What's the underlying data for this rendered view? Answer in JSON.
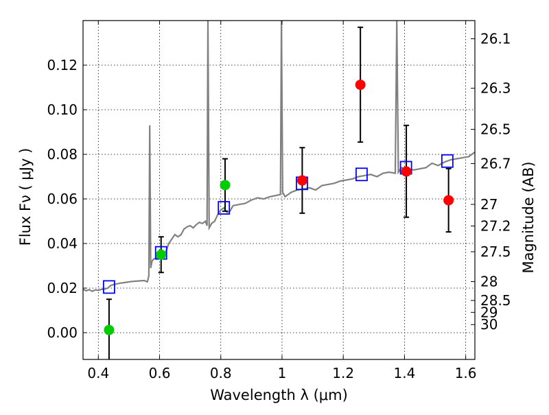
{
  "chart_data": {
    "type": "scatter",
    "xlabel": "Wavelength  λ (μm)",
    "ylabel": "Flux  Fν  ( μJy )",
    "ylabel_right": "Magnitude (AB)",
    "xlim": [
      0.35,
      1.63
    ],
    "ylim": [
      -0.012,
      0.14
    ],
    "grid": true,
    "xticks": [
      {
        "value": 0.4,
        "label": "0.4"
      },
      {
        "value": 0.6,
        "label": "0.6"
      },
      {
        "value": 0.8,
        "label": "0.8"
      },
      {
        "value": 1.0,
        "label": "1"
      },
      {
        "value": 1.2,
        "label": "1.2"
      },
      {
        "value": 1.4,
        "label": "1.4"
      },
      {
        "value": 1.6,
        "label": "1.6"
      }
    ],
    "yticks": [
      {
        "value": 0.0,
        "label": "0.00"
      },
      {
        "value": 0.02,
        "label": "0.02"
      },
      {
        "value": 0.04,
        "label": "0.04"
      },
      {
        "value": 0.06,
        "label": "0.06"
      },
      {
        "value": 0.08,
        "label": "0.08"
      },
      {
        "value": 0.1,
        "label": "0.10"
      },
      {
        "value": 0.12,
        "label": "0.12"
      }
    ],
    "right_ticks": [
      {
        "mag": 26.1,
        "label": "26.1"
      },
      {
        "mag": 26.3,
        "label": "26.3"
      },
      {
        "mag": 26.5,
        "label": "26.5"
      },
      {
        "mag": 26.7,
        "label": "26.7"
      },
      {
        "mag": 27.0,
        "label": "27"
      },
      {
        "mag": 27.2,
        "label": "27.2"
      },
      {
        "mag": 27.5,
        "label": "27.5"
      },
      {
        "mag": 28.0,
        "label": "28"
      },
      {
        "mag": 28.5,
        "label": "28.5"
      },
      {
        "mag": 29.0,
        "label": "29"
      },
      {
        "mag": 30.0,
        "label": "30"
      }
    ],
    "model_spectrum": {
      "color": "#808080",
      "points": [
        [
          0.35,
          0.0195
        ],
        [
          0.36,
          0.0188
        ],
        [
          0.37,
          0.0193
        ],
        [
          0.38,
          0.0186
        ],
        [
          0.39,
          0.0192
        ],
        [
          0.4,
          0.019
        ],
        [
          0.41,
          0.0194
        ],
        [
          0.42,
          0.0196
        ],
        [
          0.43,
          0.0199
        ],
        [
          0.44,
          0.0211
        ],
        [
          0.45,
          0.0216
        ],
        [
          0.47,
          0.0222
        ],
        [
          0.49,
          0.0226
        ],
        [
          0.51,
          0.023
        ],
        [
          0.53,
          0.0232
        ],
        [
          0.55,
          0.0234
        ],
        [
          0.56,
          0.0228
        ],
        [
          0.565,
          0.0255
        ],
        [
          0.568,
          0.093
        ],
        [
          0.571,
          0.029
        ],
        [
          0.575,
          0.032
        ],
        [
          0.58,
          0.033
        ],
        [
          0.59,
          0.0335
        ],
        [
          0.6,
          0.034
        ],
        [
          0.61,
          0.0345
        ],
        [
          0.62,
          0.036
        ],
        [
          0.63,
          0.04
        ],
        [
          0.64,
          0.042
        ],
        [
          0.65,
          0.044
        ],
        [
          0.66,
          0.043
        ],
        [
          0.67,
          0.044
        ],
        [
          0.68,
          0.0465
        ],
        [
          0.69,
          0.0475
        ],
        [
          0.7,
          0.048
        ],
        [
          0.71,
          0.047
        ],
        [
          0.72,
          0.0485
        ],
        [
          0.73,
          0.0495
        ],
        [
          0.74,
          0.049
        ],
        [
          0.75,
          0.05
        ],
        [
          0.755,
          0.048
        ],
        [
          0.758,
          0.14
        ],
        [
          0.762,
          0.047
        ],
        [
          0.77,
          0.049
        ],
        [
          0.78,
          0.05
        ],
        [
          0.79,
          0.053
        ],
        [
          0.8,
          0.055
        ],
        [
          0.81,
          0.056
        ],
        [
          0.82,
          0.054
        ],
        [
          0.83,
          0.0545
        ],
        [
          0.84,
          0.057
        ],
        [
          0.86,
          0.0575
        ],
        [
          0.88,
          0.058
        ],
        [
          0.9,
          0.0595
        ],
        [
          0.92,
          0.0605
        ],
        [
          0.94,
          0.06
        ],
        [
          0.96,
          0.061
        ],
        [
          0.98,
          0.0615
        ],
        [
          0.995,
          0.062
        ],
        [
          0.998,
          0.14
        ],
        [
          1.002,
          0.063
        ],
        [
          1.01,
          0.061
        ],
        [
          1.03,
          0.063
        ],
        [
          1.05,
          0.064
        ],
        [
          1.07,
          0.0645
        ],
        [
          1.09,
          0.065
        ],
        [
          1.11,
          0.064
        ],
        [
          1.13,
          0.066
        ],
        [
          1.15,
          0.0665
        ],
        [
          1.17,
          0.067
        ],
        [
          1.19,
          0.068
        ],
        [
          1.21,
          0.0685
        ],
        [
          1.23,
          0.069
        ],
        [
          1.25,
          0.07
        ],
        [
          1.27,
          0.0705
        ],
        [
          1.29,
          0.071
        ],
        [
          1.31,
          0.07
        ],
        [
          1.33,
          0.0715
        ],
        [
          1.35,
          0.072
        ],
        [
          1.37,
          0.0715
        ],
        [
          1.375,
          0.14
        ],
        [
          1.38,
          0.072
        ],
        [
          1.39,
          0.074
        ],
        [
          1.41,
          0.0735
        ],
        [
          1.43,
          0.073
        ],
        [
          1.45,
          0.0735
        ],
        [
          1.47,
          0.074
        ],
        [
          1.49,
          0.076
        ],
        [
          1.51,
          0.075
        ],
        [
          1.53,
          0.0765
        ],
        [
          1.55,
          0.0775
        ],
        [
          1.57,
          0.078
        ],
        [
          1.59,
          0.0785
        ],
        [
          1.61,
          0.079
        ],
        [
          1.63,
          0.081
        ]
      ]
    },
    "model_photometry": {
      "color": "#0000ff",
      "marker": "open-square",
      "points": [
        [
          0.435,
          0.0205
        ],
        [
          0.605,
          0.0358
        ],
        [
          0.81,
          0.056
        ],
        [
          1.065,
          0.067
        ],
        [
          1.26,
          0.071
        ],
        [
          1.405,
          0.074
        ],
        [
          1.54,
          0.077
        ]
      ]
    },
    "observed_optical": {
      "color": "#00cc00",
      "marker": "filled-circle",
      "points": [
        {
          "x": 0.435,
          "y": 0.0012,
          "err_low": 0.0142,
          "err_high": 0.0138
        },
        {
          "x": 0.605,
          "y": 0.035,
          "err_low": 0.008,
          "err_high": 0.008
        },
        {
          "x": 0.814,
          "y": 0.0662,
          "err_low": 0.0117,
          "err_high": 0.0118
        }
      ]
    },
    "observed_nir": {
      "color": "#ff0000",
      "marker": "filled-circle",
      "points": [
        {
          "x": 1.066,
          "y": 0.0683,
          "err_low": 0.0147,
          "err_high": 0.0147
        },
        {
          "x": 1.256,
          "y": 0.1112,
          "err_low": 0.0257,
          "err_high": 0.0258
        },
        {
          "x": 1.406,
          "y": 0.0723,
          "err_low": 0.0205,
          "err_high": 0.0207
        },
        {
          "x": 1.544,
          "y": 0.0594,
          "err_low": 0.0142,
          "err_high": 0.0142
        }
      ]
    }
  }
}
